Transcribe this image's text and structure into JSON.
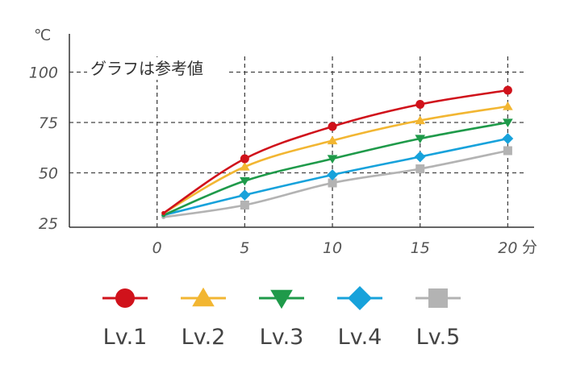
{
  "chart_data": {
    "type": "line",
    "y_unit": "℃",
    "x_unit": "分",
    "annotation": "グラフは参考値",
    "x": [
      0,
      5,
      10,
      15,
      20
    ],
    "x_ticks": [
      "0",
      "5",
      "10",
      "15",
      "20"
    ],
    "y_ticks": [
      "25",
      "50",
      "75",
      "100"
    ],
    "y_tick_values": [
      25,
      50,
      75,
      100
    ],
    "xlim": [
      -5,
      21.5
    ],
    "ylim": [
      23,
      119
    ],
    "grid": "dashed",
    "legend_position": "bottom",
    "series": [
      {
        "name": "Lv.1",
        "color": "#d0121b",
        "marker": "circle",
        "values": [
          30,
          57,
          73,
          84,
          91
        ]
      },
      {
        "name": "Lv.2",
        "color": "#f2b632",
        "marker": "triangle-up",
        "values": [
          30,
          53,
          66,
          76,
          83
        ]
      },
      {
        "name": "Lv.3",
        "color": "#1f9a4a",
        "marker": "triangle-down",
        "values": [
          29,
          46,
          57,
          67,
          75
        ]
      },
      {
        "name": "Lv.4",
        "color": "#17a2db",
        "marker": "diamond",
        "values": [
          29,
          39,
          49,
          58,
          67
        ]
      },
      {
        "name": "Lv.5",
        "color": "#b3b3b3",
        "marker": "square",
        "values": [
          28,
          34,
          45,
          52,
          61
        ]
      }
    ]
  }
}
